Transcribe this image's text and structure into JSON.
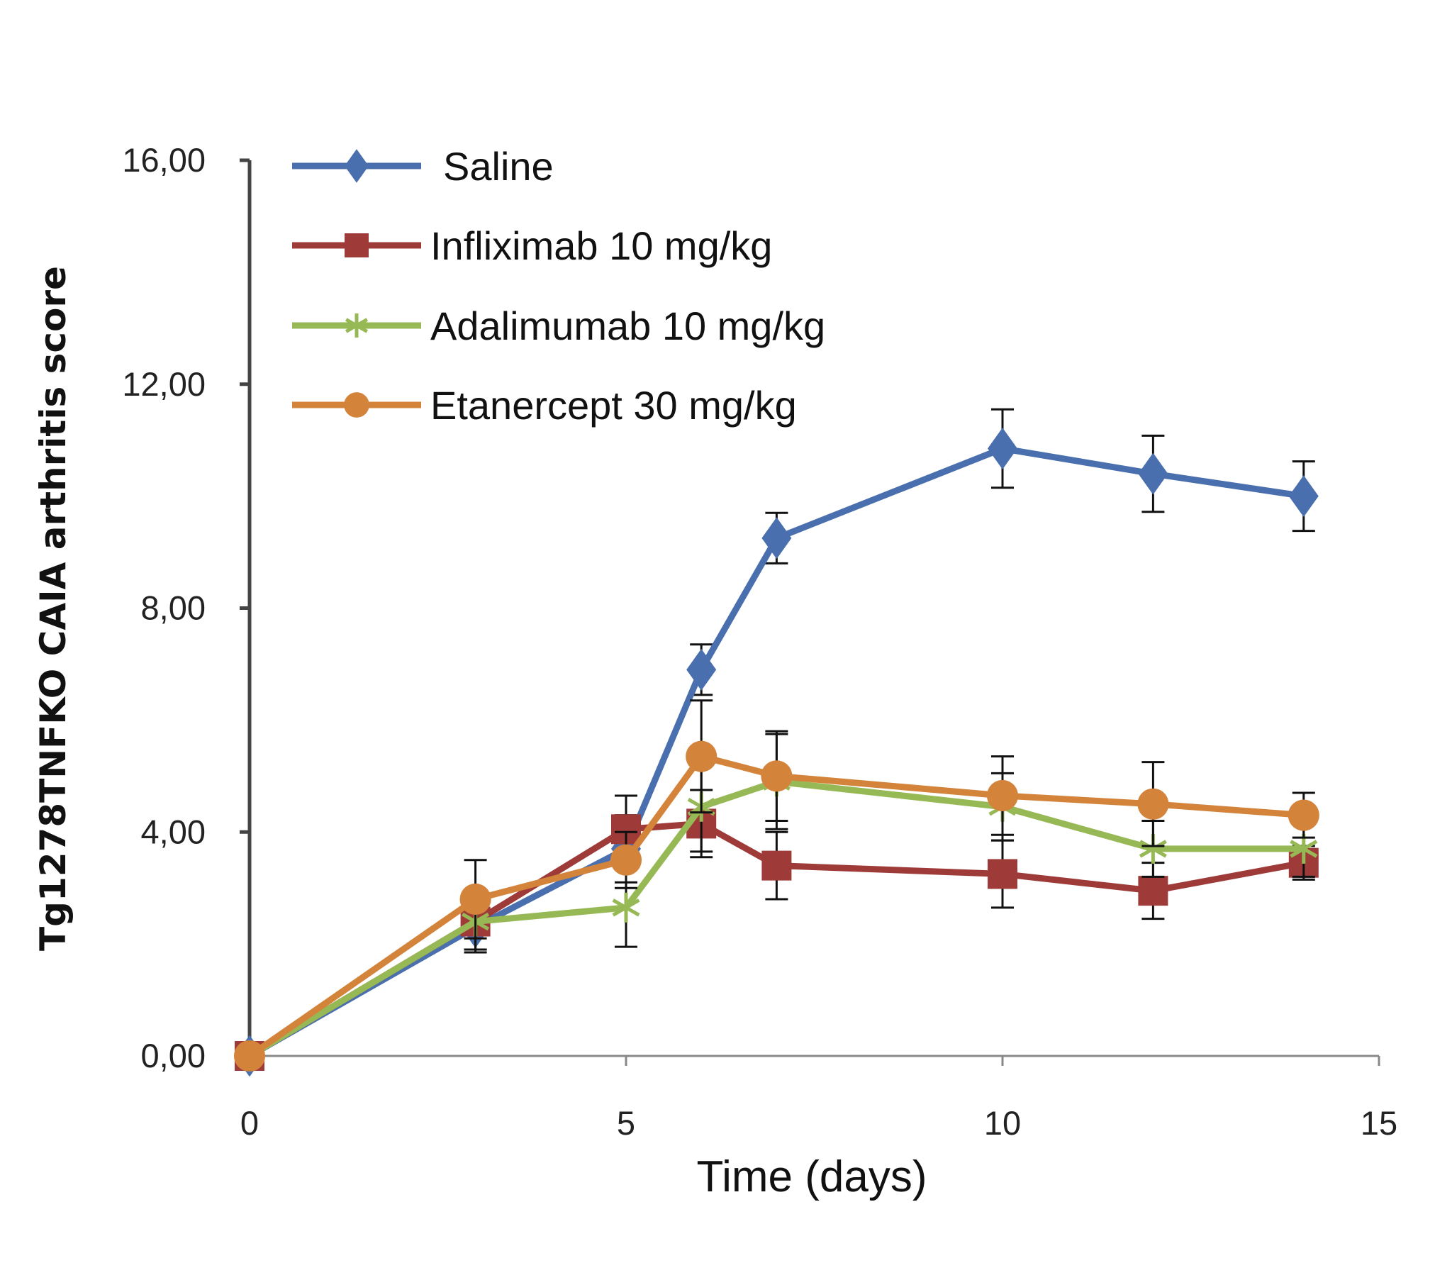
{
  "chart_data": {
    "type": "line",
    "xlabel": "Time (days)",
    "ylabel": "Tg1278TNFKO CAIA arthritis score",
    "xlim": [
      0,
      15
    ],
    "ylim": [
      0,
      16
    ],
    "xticks": [
      "0",
      "5",
      "10",
      "15"
    ],
    "xtick_values": [
      0,
      5,
      10,
      15
    ],
    "yticks": [
      "0,00",
      "4,00",
      "8,00",
      "12,00",
      "16,00"
    ],
    "ytick_values": [
      0,
      4,
      8,
      12,
      16
    ],
    "grid": false,
    "legend_position": "top-left",
    "x": [
      0,
      3,
      5,
      6,
      7,
      10,
      12,
      14
    ],
    "series": [
      {
        "name": "Saline",
        "color": "#4a6fae",
        "marker": "diamond",
        "values": [
          0,
          2.3,
          3.7,
          6.9,
          9.25,
          10.85,
          10.4,
          10.0
        ],
        "errors": [
          0,
          0.4,
          0.6,
          0.45,
          0.45,
          0.7,
          0.68,
          0.62
        ]
      },
      {
        "name": "Infliximab 10 mg/kg",
        "color": "#9e3b39",
        "marker": "square",
        "values": [
          0,
          2.4,
          4.05,
          4.15,
          3.4,
          3.25,
          2.95,
          3.45
        ],
        "errors": [
          0,
          0.5,
          0.6,
          0.6,
          0.6,
          0.6,
          0.5,
          0.3
        ]
      },
      {
        "name": "Adalimumab 10 mg/kg",
        "color": "#97b955",
        "marker": "star",
        "values": [
          0,
          2.4,
          2.65,
          4.45,
          4.9,
          4.45,
          3.7,
          3.7
        ],
        "errors": [
          0,
          0.55,
          0.7,
          0.8,
          0.85,
          0.6,
          0.5,
          0.5
        ]
      },
      {
        "name": "Etanercept 30 mg/kg",
        "color": "#d4833a",
        "marker": "circle",
        "values": [
          0,
          2.8,
          3.5,
          5.35,
          5.0,
          4.65,
          4.5,
          4.3
        ],
        "errors": [
          0,
          0.7,
          0.5,
          1.0,
          0.8,
          0.7,
          0.75,
          0.4
        ]
      }
    ]
  }
}
